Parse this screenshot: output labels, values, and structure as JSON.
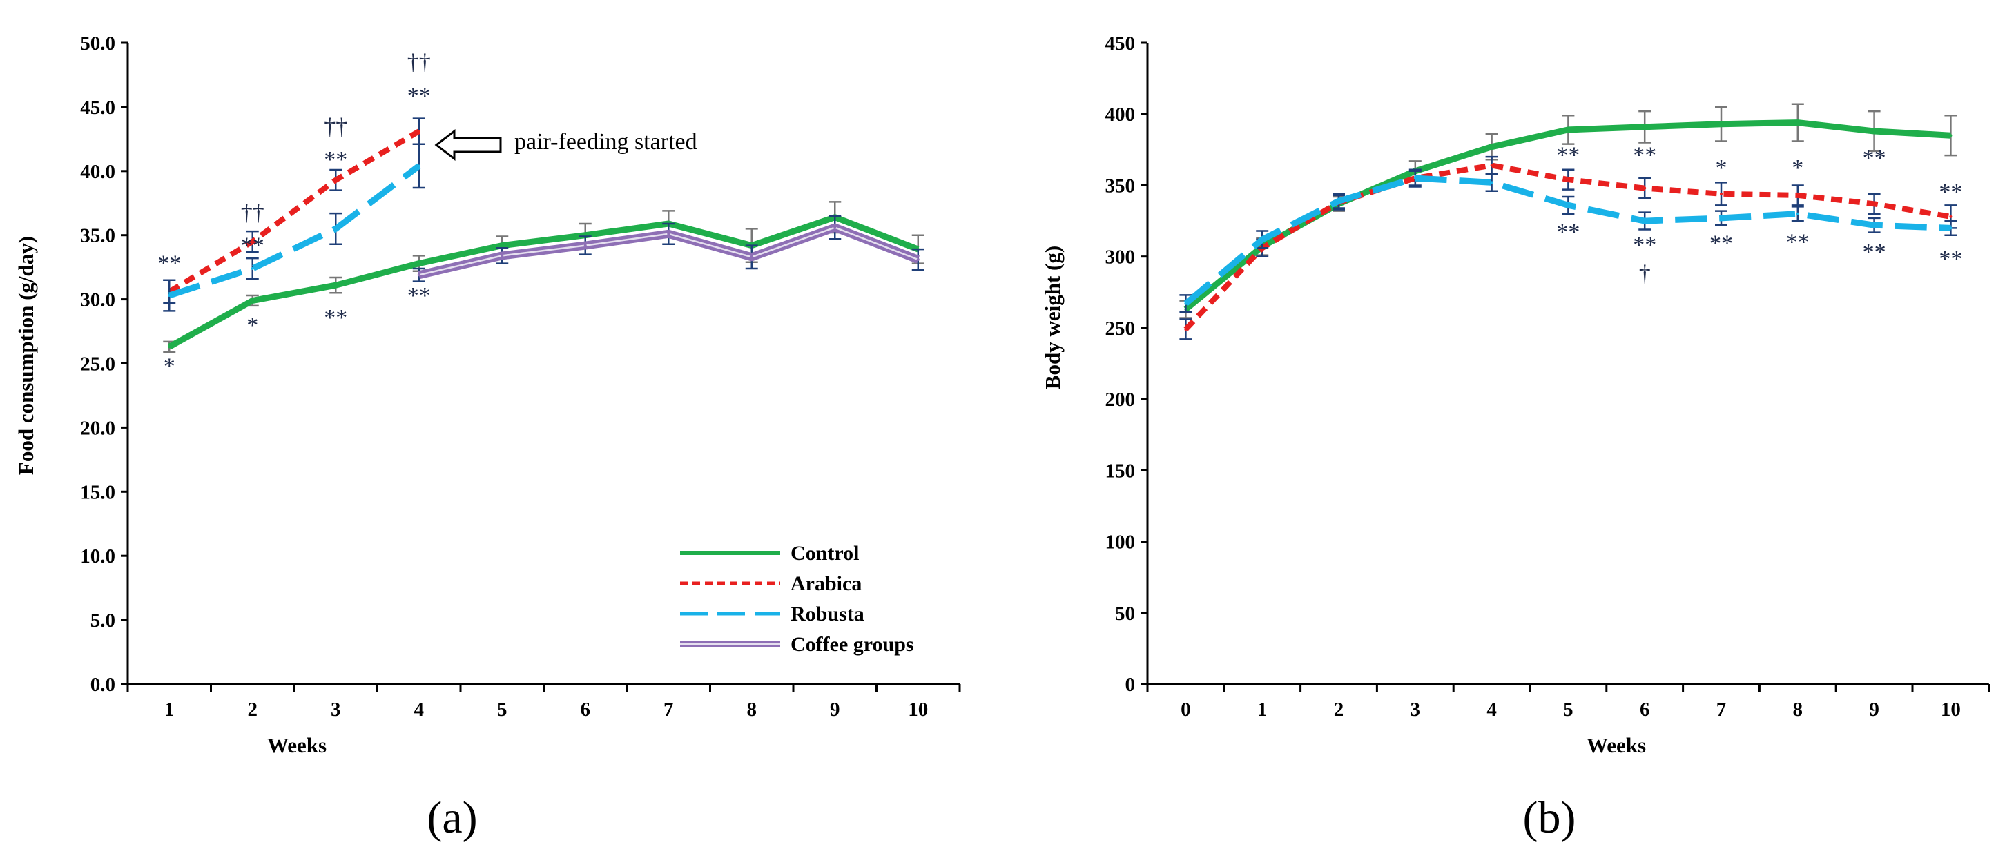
{
  "chart_data": [
    {
      "panel": "(a)",
      "type": "line",
      "xlabel": "Weeks",
      "ylabel": "Food consumption (g/day)",
      "categories": [
        "1",
        "2",
        "3",
        "4",
        "5",
        "6",
        "7",
        "8",
        "9",
        "10"
      ],
      "ylim": [
        0,
        50
      ],
      "ytick_labels": [
        "0.0",
        "5.0",
        "10.0",
        "15.0",
        "20.0",
        "25.0",
        "30.0",
        "35.0",
        "40.0",
        "45.0",
        "50.0"
      ],
      "series": [
        {
          "name": "Control",
          "color": "#1fae4b",
          "style": "solid",
          "x": [
            1,
            2,
            3,
            4,
            5,
            6,
            7,
            8,
            9,
            10
          ],
          "values": [
            26.3,
            29.9,
            31.1,
            32.8,
            34.2,
            35.0,
            35.9,
            34.2,
            36.4,
            33.9
          ],
          "errors": [
            0.4,
            0.4,
            0.6,
            0.6,
            0.7,
            0.9,
            1.0,
            1.3,
            1.2,
            1.1
          ]
        },
        {
          "name": "Arabica",
          "color": "#e8201f",
          "style": "short-dash",
          "x": [
            1,
            2,
            3,
            4
          ],
          "values": [
            30.6,
            34.5,
            39.3,
            43.1
          ],
          "errors": [
            0.9,
            0.8,
            0.8,
            1.0
          ]
        },
        {
          "name": "Robusta",
          "color": "#19b2e8",
          "style": "long-dash",
          "x": [
            1,
            2,
            3,
            4
          ],
          "values": [
            30.3,
            32.4,
            35.5,
            40.4
          ],
          "errors": [
            1.2,
            0.8,
            1.2,
            1.7
          ]
        },
        {
          "name": "Coffee groups",
          "color": "#8e6fb5",
          "style": "double-line",
          "x": [
            4,
            5,
            6,
            7,
            8,
            9,
            10
          ],
          "values": [
            31.9,
            33.4,
            34.2,
            35.1,
            33.3,
            35.6,
            33.1
          ],
          "errors": [
            0.5,
            0.6,
            0.7,
            0.8,
            0.9,
            0.9,
            0.8
          ]
        }
      ],
      "annotations": [
        {
          "x": 1,
          "y": 32.2,
          "text": "**",
          "color": "#1f2b4a"
        },
        {
          "x": 1,
          "y": 24.2,
          "text": "*",
          "color": "#1f2b4a"
        },
        {
          "x": 2,
          "y": 36.2,
          "text": "††",
          "color": "#1f2b4a"
        },
        {
          "x": 2,
          "y": 33.6,
          "text": "**",
          "color": "#1f2b4a"
        },
        {
          "x": 2,
          "y": 27.4,
          "text": "*",
          "color": "#1f2b4a"
        },
        {
          "x": 3,
          "y": 42.9,
          "text": "††",
          "color": "#1f2b4a"
        },
        {
          "x": 3,
          "y": 40.3,
          "text": "**",
          "color": "#1f2b4a"
        },
        {
          "x": 3,
          "y": 28.0,
          "text": "**",
          "color": "#1f2b4a"
        },
        {
          "x": 4,
          "y": 47.9,
          "text": "††",
          "color": "#1f2b4a"
        },
        {
          "x": 4,
          "y": 45.3,
          "text": "**",
          "color": "#1f2b4a"
        },
        {
          "x": 4,
          "y": 29.7,
          "text": "**",
          "color": "#1f2b4a"
        }
      ],
      "callout": {
        "text": "pair-feeding started",
        "x": 4.3,
        "y": 42.0
      },
      "legend": [
        "Control",
        "Arabica",
        "Robusta",
        "Coffee groups"
      ]
    },
    {
      "panel": "(b)",
      "type": "line",
      "xlabel": "Weeks",
      "ylabel": "Body weight (g)",
      "categories": [
        "0",
        "1",
        "2",
        "3",
        "4",
        "5",
        "6",
        "7",
        "8",
        "9",
        "10"
      ],
      "ylim": [
        0,
        450
      ],
      "ytick_labels": [
        "0",
        "50",
        "100",
        "150",
        "200",
        "250",
        "300",
        "350",
        "400",
        "450"
      ],
      "series": [
        {
          "name": "Control",
          "color": "#1fae4b",
          "style": "solid",
          "x": [
            0,
            1,
            2,
            3,
            4,
            5,
            6,
            7,
            8,
            9,
            10
          ],
          "values": [
            263,
            307,
            337,
            360,
            377,
            389,
            391,
            393,
            394,
            388,
            385
          ],
          "errors": [
            6,
            6,
            5,
            7,
            9,
            10,
            11,
            12,
            13,
            14,
            14
          ]
        },
        {
          "name": "Arabica",
          "color": "#e8201f",
          "style": "short-dash",
          "x": [
            0,
            1,
            2,
            3,
            4,
            5,
            6,
            7,
            8,
            9,
            10
          ],
          "values": [
            249,
            306,
            338,
            355,
            364,
            354,
            348,
            344,
            343,
            337,
            328
          ],
          "errors": [
            7,
            6,
            5,
            5,
            6,
            7,
            7,
            8,
            7,
            7,
            8
          ]
        },
        {
          "name": "Robusta",
          "color": "#19b2e8",
          "style": "long-dash",
          "x": [
            0,
            1,
            2,
            3,
            4,
            5,
            6,
            7,
            8,
            9,
            10
          ],
          "values": [
            267,
            312,
            339,
            355,
            352,
            336,
            325,
            327,
            330,
            322,
            320
          ],
          "errors": [
            6,
            6,
            5,
            6,
            6,
            6,
            6,
            5,
            5,
            5,
            5
          ]
        }
      ],
      "annotations": [
        {
          "x": 5,
          "y": 366,
          "text": "**",
          "color": "#000"
        },
        {
          "x": 5,
          "y": 312,
          "text": "**",
          "color": "#000"
        },
        {
          "x": 6,
          "y": 366,
          "text": "**",
          "color": "#000"
        },
        {
          "x": 6,
          "y": 303,
          "text": "**",
          "color": "#000"
        },
        {
          "x": 6,
          "y": 283,
          "text": "†",
          "color": "#000"
        },
        {
          "x": 7,
          "y": 357,
          "text": "*",
          "color": "#000"
        },
        {
          "x": 7,
          "y": 304,
          "text": "**",
          "color": "#000"
        },
        {
          "x": 8,
          "y": 357,
          "text": "*",
          "color": "#000"
        },
        {
          "x": 8,
          "y": 305,
          "text": "**",
          "color": "#000"
        },
        {
          "x": 9,
          "y": 364,
          "text": "**",
          "color": "#000"
        },
        {
          "x": 9,
          "y": 298,
          "text": "**",
          "color": "#000"
        },
        {
          "x": 10,
          "y": 340,
          "text": "**",
          "color": "#000"
        },
        {
          "x": 10,
          "y": 293,
          "text": "**",
          "color": "#000"
        }
      ]
    }
  ]
}
